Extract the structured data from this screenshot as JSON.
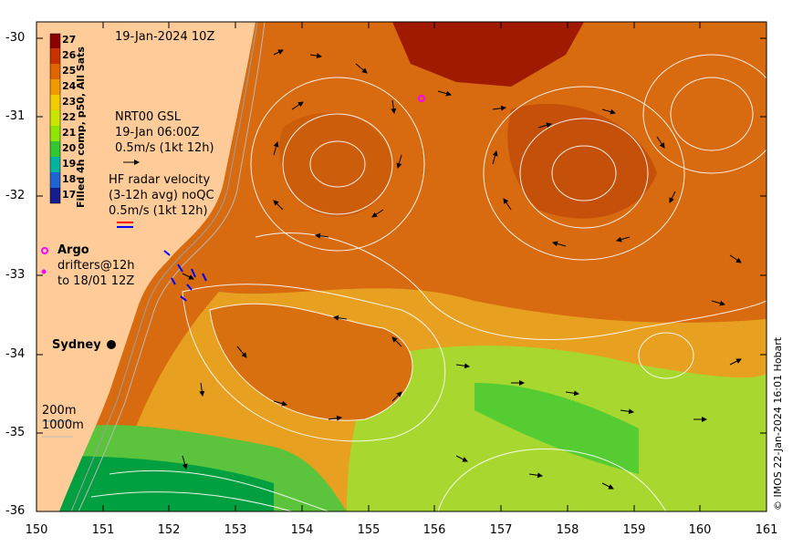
{
  "map": {
    "title_date": "19-Jan-2024 10Z",
    "x_ticks": [
      "150",
      "151",
      "152",
      "153",
      "154",
      "155",
      "156",
      "157",
      "158",
      "159",
      "160",
      "161"
    ],
    "y_ticks": [
      "-30",
      "-31",
      "-32",
      "-33",
      "-34",
      "-35",
      "-36"
    ],
    "lon_range": [
      150,
      161
    ],
    "lat_range": [
      -36,
      -29.8
    ],
    "colors": {
      "land": "#ffcc99",
      "warm_max": "#8b0000",
      "cool_min": "#00a040",
      "contours": "#ffffff",
      "argo": "#ff00ff",
      "radar_red": "#ff0000",
      "radar_blue": "#0000ff"
    }
  },
  "colorbar": {
    "title": "Filled 4h comp, p50, All Sats",
    "labels": [
      "27",
      "26",
      "25",
      "24",
      "23",
      "22",
      "21",
      "20",
      "19",
      "18",
      "17"
    ],
    "colors": [
      "#8b0000",
      "#c83200",
      "#e06400",
      "#f09a00",
      "#f2cc00",
      "#c8e600",
      "#8ce600",
      "#32c832",
      "#00b4a0",
      "#1e64d2",
      "#141e8c"
    ]
  },
  "legend": {
    "gsl_line1": "NRT00 GSL",
    "gsl_line2": "19-Jan 06:00Z",
    "gsl_line3": "0.5m/s (1kt 12h)",
    "radar_line1": "HF radar velocity",
    "radar_line2": "(3-12h avg) noQC",
    "radar_line3": "0.5m/s (1kt 12h)",
    "argo_label": "Argo",
    "drifters_line1": "drifters@12h",
    "drifters_line2": "to 18/01 12Z",
    "city": "Sydney",
    "depth_200": "200m",
    "depth_1000": "1000m"
  },
  "credit": "© IMOS 22-Jan-2024 16:01 Hobart"
}
